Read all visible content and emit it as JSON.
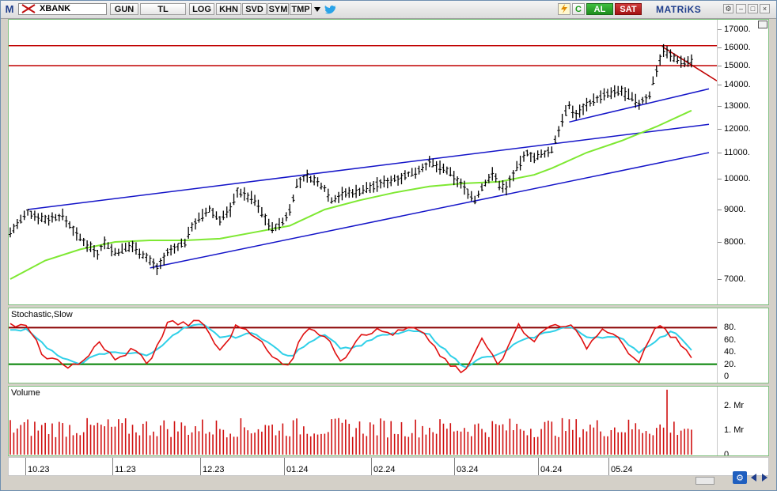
{
  "toolbar": {
    "logo": "M",
    "symbol": "XBANK",
    "buttons": [
      {
        "id": "gun",
        "label": "GUN"
      },
      {
        "id": "tl",
        "label": "TL"
      },
      {
        "id": "log",
        "label": "LOG"
      },
      {
        "id": "khn",
        "label": "KHN"
      },
      {
        "id": "svd",
        "label": "SVD"
      },
      {
        "id": "sym",
        "label": "SYM"
      },
      {
        "id": "tmp",
        "label": "TMP"
      }
    ],
    "refresh_label": "C",
    "buy_label": "AL",
    "sell_label": "SAT",
    "brand": "MATRiKS"
  },
  "main_axis_labels": [
    "17000.",
    "16000.",
    "15000.",
    "14000.",
    "13000.",
    "12000.",
    "11000.",
    "10000.",
    "9000.",
    "8000.",
    "7000."
  ],
  "stochastic": {
    "title": "Stochastic,Slow",
    "axis_labels": [
      "80.",
      "60.",
      "40.",
      "20.",
      "0"
    ],
    "upper_level": 80,
    "lower_level": 20
  },
  "volume": {
    "title": "Volume",
    "axis_labels": [
      "2. Mr",
      "1. Mr",
      "0"
    ]
  },
  "date_labels": [
    "10.23",
    "11.23",
    "12.23",
    "01.24",
    "02.24",
    "03.24",
    "04.24",
    "05.24"
  ],
  "colors": {
    "candle": "#000000",
    "support_resistance": "#c00000",
    "channel": "#1414c8",
    "moving_average": "#7ee832",
    "stoch_k": "#e01010",
    "stoch_d": "#30d0e8",
    "volume_bar": "#d01010",
    "level_high": "#8b0000",
    "level_low": "#008000"
  },
  "chart_data": {
    "type": "line",
    "symbol": "XBANK",
    "y_ticks": [
      7000,
      8000,
      9000,
      10000,
      11000,
      12000,
      13000,
      14000,
      15000,
      16000,
      17000
    ],
    "horizontal_levels": [
      16100,
      15000
    ],
    "price_path": [
      [
        0,
        8300
      ],
      [
        5,
        8900
      ],
      [
        10,
        8700
      ],
      [
        15,
        8800
      ],
      [
        20,
        8100
      ],
      [
        25,
        7700
      ],
      [
        27,
        8000
      ],
      [
        30,
        7700
      ],
      [
        35,
        7900
      ],
      [
        40,
        7500
      ],
      [
        42,
        7300
      ],
      [
        45,
        7700
      ],
      [
        50,
        8000
      ],
      [
        52,
        8500
      ],
      [
        55,
        8800
      ],
      [
        57,
        9000
      ],
      [
        60,
        8700
      ],
      [
        63,
        9000
      ],
      [
        65,
        9600
      ],
      [
        70,
        9300
      ],
      [
        72,
        8900
      ],
      [
        75,
        8400
      ],
      [
        78,
        8600
      ],
      [
        80,
        9000
      ],
      [
        82,
        9800
      ],
      [
        85,
        10100
      ],
      [
        90,
        9700
      ],
      [
        92,
        9300
      ],
      [
        95,
        9500
      ],
      [
        100,
        9600
      ],
      [
        105,
        9800
      ],
      [
        110,
        10000
      ],
      [
        115,
        10200
      ],
      [
        120,
        10600
      ],
      [
        125,
        10300
      ],
      [
        130,
        9700
      ],
      [
        133,
        9300
      ],
      [
        135,
        9700
      ],
      [
        138,
        10200
      ],
      [
        140,
        9800
      ],
      [
        142,
        9700
      ],
      [
        145,
        10400
      ],
      [
        148,
        11000
      ],
      [
        150,
        10800
      ],
      [
        152,
        10900
      ],
      [
        155,
        11100
      ],
      [
        158,
        12400
      ],
      [
        160,
        13000
      ],
      [
        162,
        12600
      ],
      [
        165,
        13100
      ],
      [
        170,
        13500
      ],
      [
        175,
        13700
      ],
      [
        180,
        13100
      ],
      [
        183,
        13500
      ],
      [
        185,
        14800
      ],
      [
        187,
        15900
      ],
      [
        190,
        15400
      ],
      [
        193,
        15200
      ],
      [
        195,
        15300
      ]
    ],
    "moving_average": [
      [
        0,
        7000
      ],
      [
        10,
        7500
      ],
      [
        20,
        7800
      ],
      [
        30,
        8000
      ],
      [
        40,
        8050
      ],
      [
        50,
        8050
      ],
      [
        60,
        8100
      ],
      [
        70,
        8300
      ],
      [
        80,
        8500
      ],
      [
        90,
        9000
      ],
      [
        100,
        9300
      ],
      [
        110,
        9550
      ],
      [
        120,
        9750
      ],
      [
        130,
        9850
      ],
      [
        140,
        9900
      ],
      [
        150,
        10150
      ],
      [
        155,
        10400
      ],
      [
        165,
        11000
      ],
      [
        175,
        11500
      ],
      [
        185,
        12100
      ],
      [
        195,
        12800
      ]
    ],
    "channel_lines": [
      {
        "from": [
          5,
          9000
        ],
        "to": [
          200,
          12200
        ]
      },
      {
        "from": [
          40,
          7300
        ],
        "to": [
          200,
          11000
        ]
      },
      {
        "from": [
          160,
          12300
        ],
        "to": [
          200,
          13800
        ]
      }
    ],
    "stochastic_k": [
      [
        0,
        85
      ],
      [
        5,
        80
      ],
      [
        10,
        30
      ],
      [
        15,
        20
      ],
      [
        20,
        15
      ],
      [
        25,
        60
      ],
      [
        30,
        25
      ],
      [
        35,
        45
      ],
      [
        40,
        20
      ],
      [
        45,
        90
      ],
      [
        50,
        85
      ],
      [
        55,
        90
      ],
      [
        60,
        40
      ],
      [
        65,
        85
      ],
      [
        70,
        70
      ],
      [
        75,
        30
      ],
      [
        80,
        20
      ],
      [
        85,
        85
      ],
      [
        90,
        65
      ],
      [
        95,
        25
      ],
      [
        100,
        70
      ],
      [
        105,
        75
      ],
      [
        110,
        70
      ],
      [
        115,
        80
      ],
      [
        120,
        60
      ],
      [
        125,
        20
      ],
      [
        130,
        5
      ],
      [
        135,
        60
      ],
      [
        140,
        20
      ],
      [
        145,
        85
      ],
      [
        150,
        60
      ],
      [
        155,
        85
      ],
      [
        160,
        85
      ],
      [
        165,
        50
      ],
      [
        170,
        80
      ],
      [
        175,
        55
      ],
      [
        180,
        20
      ],
      [
        185,
        85
      ],
      [
        190,
        65
      ],
      [
        195,
        30
      ]
    ],
    "stochastic_d": [
      [
        0,
        75
      ],
      [
        5,
        78
      ],
      [
        10,
        50
      ],
      [
        15,
        28
      ],
      [
        20,
        22
      ],
      [
        25,
        35
      ],
      [
        30,
        40
      ],
      [
        35,
        38
      ],
      [
        40,
        35
      ],
      [
        45,
        60
      ],
      [
        50,
        80
      ],
      [
        55,
        85
      ],
      [
        60,
        65
      ],
      [
        65,
        65
      ],
      [
        70,
        72
      ],
      [
        75,
        50
      ],
      [
        80,
        30
      ],
      [
        85,
        55
      ],
      [
        90,
        70
      ],
      [
        95,
        45
      ],
      [
        100,
        50
      ],
      [
        105,
        65
      ],
      [
        110,
        70
      ],
      [
        115,
        75
      ],
      [
        120,
        68
      ],
      [
        125,
        40
      ],
      [
        130,
        15
      ],
      [
        135,
        30
      ],
      [
        140,
        35
      ],
      [
        145,
        55
      ],
      [
        150,
        65
      ],
      [
        155,
        75
      ],
      [
        160,
        82
      ],
      [
        165,
        65
      ],
      [
        170,
        65
      ],
      [
        175,
        62
      ],
      [
        180,
        40
      ],
      [
        185,
        60
      ],
      [
        190,
        75
      ],
      [
        195,
        45
      ]
    ],
    "volume_axis_ticks": [
      "0",
      "1. Mr",
      "2. Mr"
    ]
  }
}
